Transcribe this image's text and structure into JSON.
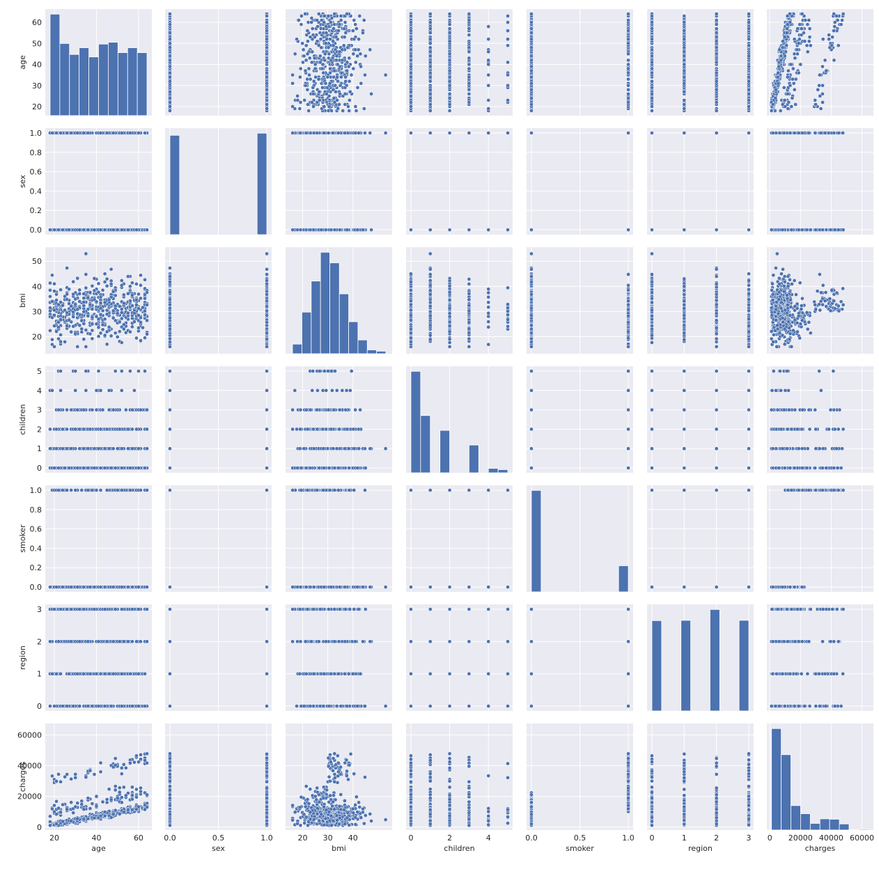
{
  "chart_data": {
    "type": "pairplot",
    "variables": [
      {
        "name": "age",
        "lim": [
          15.7,
          66.3
        ],
        "ticks": [
          20,
          30,
          40,
          50,
          60
        ],
        "tick_labels": [
          "20",
          "30",
          "40",
          "50",
          "60"
        ],
        "x_ticks": [
          20,
          40,
          60
        ],
        "x_tick_labels": [
          "20",
          "40",
          "60"
        ]
      },
      {
        "name": "sex",
        "lim": [
          -0.05,
          1.05
        ],
        "ticks": [
          0,
          0.2,
          0.4,
          0.6,
          0.8,
          1.0
        ],
        "tick_labels": [
          "0.0",
          "0.2",
          "0.4",
          "0.6",
          "0.8",
          "1.0"
        ],
        "x_ticks": [
          0,
          0.5,
          1.0
        ],
        "x_tick_labels": [
          "0.0",
          "0.5",
          "1.0"
        ]
      },
      {
        "name": "bmi",
        "lim": [
          13.2,
          55.6
        ],
        "ticks": [
          20,
          30,
          40,
          50
        ],
        "tick_labels": [
          "20",
          "30",
          "40",
          "50"
        ],
        "x_ticks": [
          20,
          30,
          40
        ],
        "x_tick_labels": [
          "20",
          "30",
          "40"
        ]
      },
      {
        "name": "children",
        "lim": [
          -0.25,
          5.25
        ],
        "ticks": [
          0,
          1,
          2,
          3,
          4,
          5
        ],
        "tick_labels": [
          "0",
          "1",
          "2",
          "3",
          "4",
          "5"
        ],
        "x_ticks": [
          0,
          2,
          4
        ],
        "x_tick_labels": [
          "0",
          "2",
          "4"
        ]
      },
      {
        "name": "smoker",
        "lim": [
          -0.05,
          1.05
        ],
        "ticks": [
          0,
          0.2,
          0.4,
          0.6,
          0.8,
          1.0
        ],
        "tick_labels": [
          "0.0",
          "0.2",
          "0.4",
          "0.6",
          "0.8",
          "1.0"
        ],
        "x_ticks": [
          0,
          0.5,
          1.0
        ],
        "x_tick_labels": [
          "0.0",
          "0.5",
          "1.0"
        ]
      },
      {
        "name": "region",
        "lim": [
          -0.15,
          3.15
        ],
        "ticks": [
          0,
          1,
          2,
          3
        ],
        "tick_labels": [
          "0",
          "1",
          "2",
          "3"
        ],
        "x_ticks": [
          0,
          1,
          2,
          3
        ],
        "x_tick_labels": [
          "0",
          "1",
          "2",
          "3"
        ]
      },
      {
        "name": "charges",
        "lim": [
          -1900,
          67500
        ],
        "ticks": [
          0,
          20000,
          40000,
          60000
        ],
        "tick_labels": [
          "0",
          "20000",
          "40000",
          "60000"
        ],
        "x_ticks": [
          0,
          20000,
          40000,
          60000
        ],
        "x_tick_labels": [
          "0",
          "20000",
          "40000",
          "60000"
        ]
      }
    ],
    "histograms": [
      {
        "variable": "age",
        "bin_edges": [
          18,
          22.6,
          27.2,
          31.8,
          36.4,
          41,
          45.6,
          50.2,
          54.8,
          59.4,
          64
        ],
        "counts": [
          166,
          118,
          100,
          111,
          96,
          117,
          120,
          103,
          111,
          103
        ]
      },
      {
        "variable": "sex",
        "bin_edges": [
          0,
          0.1,
          0.2,
          0.3,
          0.4,
          0.5,
          0.6,
          0.7,
          0.8,
          0.9,
          1.0
        ],
        "counts": [
          662,
          0,
          0,
          0,
          0,
          0,
          0,
          0,
          0,
          676
        ]
      },
      {
        "variable": "bmi",
        "bin_edges": [
          15.96,
          19.7,
          23.4,
          27.1,
          30.8,
          34.6,
          38.3,
          42.0,
          45.7,
          49.4,
          53.1
        ],
        "counts": [
          30,
          130,
          227,
          317,
          284,
          187,
          100,
          43,
          12,
          8
        ]
      },
      {
        "variable": "children",
        "bin_edges": [
          0,
          0.5,
          1,
          1.5,
          2,
          2.5,
          3,
          3.5,
          4,
          4.5,
          5
        ],
        "counts": [
          574,
          324,
          0,
          240,
          0,
          0,
          157,
          0,
          25,
          18
        ]
      },
      {
        "variable": "smoker",
        "bin_edges": [
          0,
          0.1,
          0.2,
          0.3,
          0.4,
          0.5,
          0.6,
          0.7,
          0.8,
          0.9,
          1.0
        ],
        "counts": [
          1064,
          0,
          0,
          0,
          0,
          0,
          0,
          0,
          0,
          274
        ]
      },
      {
        "variable": "region",
        "bin_edges": [
          0,
          0.3,
          0.6,
          0.9,
          1.2,
          1.5,
          1.8,
          2.1,
          2.4,
          2.7,
          3.0
        ],
        "counts": [
          324,
          0,
          0,
          325,
          0,
          0,
          364,
          0,
          0,
          325
        ]
      },
      {
        "variable": "charges",
        "bin_edges": [
          1122,
          7434,
          13746,
          20058,
          26370,
          32682,
          38994,
          45306,
          51618,
          57930,
          64242
        ],
        "counts": [
          536,
          398,
          129,
          86,
          35,
          59,
          57,
          32,
          2,
          4
        ]
      }
    ],
    "grid": true,
    "style": {
      "background": "#eaeaf2",
      "grid_color": "#ffffff",
      "marker_color": "#4c72b0",
      "marker_edge": "#ffffff"
    }
  }
}
